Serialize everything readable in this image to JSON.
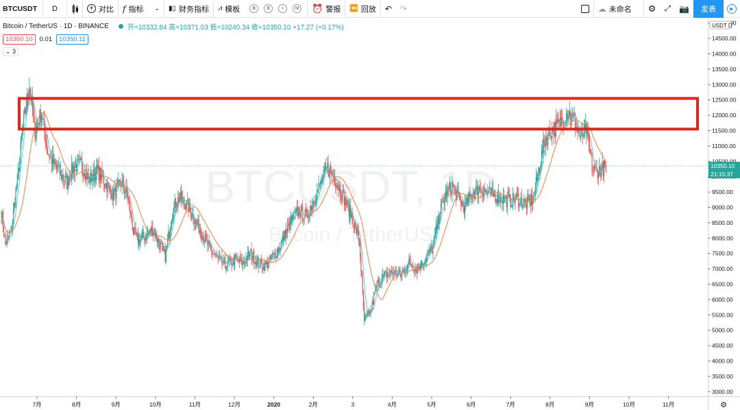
{
  "toolbar": {
    "symbol": "BTCUSDT",
    "interval": "D",
    "compare": "对比",
    "indicators": "指标",
    "financials": "财务指标",
    "templates": "模板",
    "circle_buttons": [
      "B",
      "B",
      "I",
      "M"
    ],
    "alert": "警报",
    "replay": "回放",
    "layout_name": "未命名",
    "publish": "发表"
  },
  "legend": {
    "title": "Bitcoin / TetherUS · 1D · BINANCE",
    "ohlc": "开=10332.84 高=10371.03 低=10240.34 收=10350.10 +17.27 (+0.17%)",
    "badge1": "10350.10",
    "badge2": "0.01",
    "badge3": "10350.11",
    "collapse": "⌄ 3"
  },
  "watermark": {
    "symbol": "BTCUSDT, 1D",
    "name": "Bitcoin / TetherUS"
  },
  "axis": {
    "currency": "USDT",
    "currency_suffix": "D",
    "price_label": "10350.10",
    "countdown": "21:15:37"
  },
  "colors": {
    "up": "#26a69a",
    "down": "#ef5350",
    "ma_fast": "#4dd0e1",
    "ma_slow": "#f57c3a",
    "rect": "#e8221b"
  },
  "chart_data": {
    "type": "candlestick",
    "y_ticks": [
      3000,
      3500,
      4000,
      4500,
      5000,
      5500,
      6000,
      6500,
      7000,
      7500,
      8000,
      8500,
      9000,
      9500,
      10000,
      10500,
      11000,
      11500,
      12000,
      12500,
      13000,
      13500,
      14000,
      14500,
      15000
    ],
    "x_ticks": [
      "7月",
      "8月",
      "9月",
      "10月",
      "11月",
      "12月",
      "2020",
      "2月",
      "3",
      "4月",
      "5月",
      "6月",
      "7月",
      "8月",
      "9月",
      "10月",
      "11月"
    ],
    "ylim": [
      2850,
      15150
    ],
    "last_price": 10350.1,
    "highlight_zone": {
      "low": 11550,
      "high": 12550
    },
    "anchors": [
      [
        0,
        8900
      ],
      [
        5,
        7800
      ],
      [
        12,
        8200
      ],
      [
        20,
        9900
      ],
      [
        28,
        11800
      ],
      [
        35,
        13000
      ],
      [
        42,
        11500
      ],
      [
        50,
        12100
      ],
      [
        58,
        10800
      ],
      [
        66,
        10400
      ],
      [
        74,
        10100
      ],
      [
        82,
        9800
      ],
      [
        90,
        10300
      ],
      [
        100,
        10400
      ],
      [
        110,
        9900
      ],
      [
        120,
        10200
      ],
      [
        130,
        9800
      ],
      [
        140,
        9400
      ],
      [
        150,
        9800
      ],
      [
        158,
        9400
      ],
      [
        165,
        8200
      ],
      [
        172,
        7900
      ],
      [
        182,
        8100
      ],
      [
        190,
        8300
      ],
      [
        198,
        7800
      ],
      [
        205,
        7400
      ],
      [
        215,
        9000
      ],
      [
        222,
        9300
      ],
      [
        232,
        9100
      ],
      [
        242,
        8600
      ],
      [
        252,
        8100
      ],
      [
        262,
        7600
      ],
      [
        272,
        7300
      ],
      [
        282,
        7100
      ],
      [
        292,
        7300
      ],
      [
        302,
        7200
      ],
      [
        312,
        7500
      ],
      [
        320,
        7200
      ],
      [
        330,
        7100
      ],
      [
        340,
        7400
      ],
      [
        348,
        7700
      ],
      [
        356,
        8200
      ],
      [
        364,
        8600
      ],
      [
        372,
        8900
      ],
      [
        382,
        8700
      ],
      [
        390,
        9200
      ],
      [
        400,
        9800
      ],
      [
        408,
        10300
      ],
      [
        416,
        10000
      ],
      [
        424,
        9600
      ],
      [
        432,
        9100
      ],
      [
        440,
        8600
      ],
      [
        448,
        7900
      ],
      [
        454,
        5300
      ],
      [
        462,
        5600
      ],
      [
        470,
        6500
      ],
      [
        480,
        6800
      ],
      [
        490,
        6900
      ],
      [
        500,
        6800
      ],
      [
        510,
        7200
      ],
      [
        520,
        7000
      ],
      [
        530,
        7300
      ],
      [
        540,
        7700
      ],
      [
        548,
        8800
      ],
      [
        556,
        9400
      ],
      [
        564,
        9700
      ],
      [
        572,
        9300
      ],
      [
        580,
        9000
      ],
      [
        590,
        9500
      ],
      [
        598,
        9600
      ],
      [
        606,
        9500
      ],
      [
        616,
        9400
      ],
      [
        626,
        9300
      ],
      [
        636,
        9200
      ],
      [
        646,
        9300
      ],
      [
        656,
        9100
      ],
      [
        666,
        9300
      ],
      [
        672,
        10200
      ],
      [
        680,
        11200
      ],
      [
        688,
        11500
      ],
      [
        698,
        11700
      ],
      [
        708,
        12100
      ],
      [
        716,
        11900
      ],
      [
        724,
        11300
      ],
      [
        732,
        11500
      ],
      [
        740,
        10200
      ],
      [
        748,
        10200
      ],
      [
        757,
        10350
      ]
    ]
  }
}
